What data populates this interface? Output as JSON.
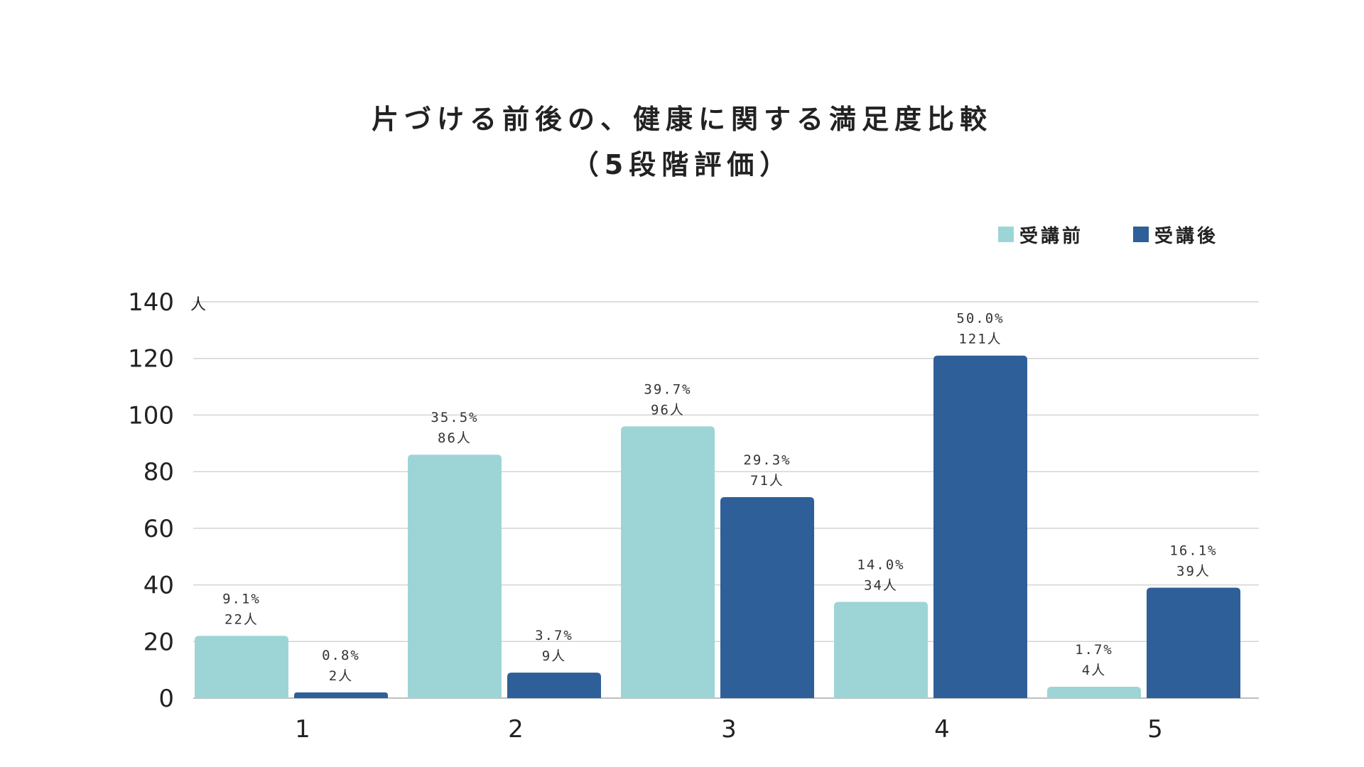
{
  "chart_data": {
    "type": "bar",
    "title": [
      "片づける前後の、健康に関する満足度比較",
      "（5段階評価）"
    ],
    "ylabel": "人",
    "xlabel": "",
    "ylim": [
      0,
      140
    ],
    "yticks": [
      0,
      20,
      40,
      60,
      80,
      100,
      120,
      140
    ],
    "grid": true,
    "legend_position": "top-right",
    "categories": [
      "1",
      "2",
      "3",
      "4",
      "5"
    ],
    "series": [
      {
        "name": "受講前",
        "color": "#9DD5D7",
        "values": [
          22,
          86,
          96,
          34,
          4
        ],
        "labels_pct": [
          "9.1%",
          "35.5%",
          "39.7%",
          "14.0%",
          "1.7%"
        ],
        "labels_count": [
          "22人",
          "86人",
          "96人",
          "34人",
          "4人"
        ]
      },
      {
        "name": "受講後",
        "color": "#2E5F98",
        "values": [
          2,
          9,
          71,
          121,
          39
        ],
        "labels_pct": [
          "0.8%",
          "3.7%",
          "29.3%",
          "50.0%",
          "16.1%"
        ],
        "labels_count": [
          "2人",
          "9人",
          "71人",
          "121人",
          "39人"
        ]
      }
    ]
  }
}
